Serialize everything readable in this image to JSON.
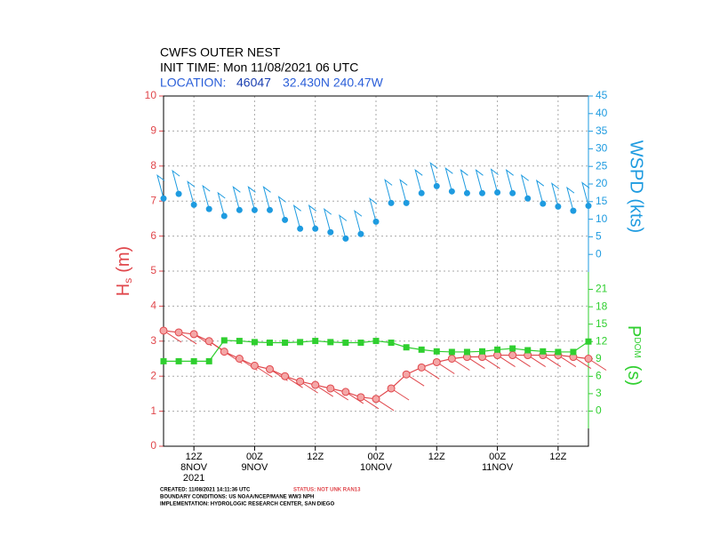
{
  "chart_data": {
    "type": "line",
    "title": "CWFS OUTER NEST",
    "subtitle": "INIT TIME: Mon 11/08/2021 06 UTC",
    "location": {
      "label": "LOCATION:",
      "station": "46047",
      "coords": "32.430N 240.47W"
    },
    "ylabel": {
      "main": "H",
      "sub": "s",
      "unit": "(m)"
    },
    "y2label": "WSPD (kts)",
    "y3label": {
      "main": "P",
      "sub": "DOM",
      "unit": "(s)"
    },
    "xlim": [
      0,
      84
    ],
    "xticks": [
      {
        "value": 6,
        "label": "12Z"
      },
      {
        "value": 18,
        "label": "00Z"
      },
      {
        "value": 30,
        "label": "12Z"
      },
      {
        "value": 42,
        "label": "00Z"
      },
      {
        "value": 54,
        "label": "12Z"
      },
      {
        "value": 66,
        "label": "00Z"
      },
      {
        "value": 78,
        "label": "12Z"
      }
    ],
    "date_labels": [
      {
        "value": 6,
        "label": "8NOV"
      },
      {
        "value": 18,
        "label": "9NOV"
      },
      {
        "value": 42,
        "label": "10NOV"
      },
      {
        "value": 66,
        "label": "11NOV"
      }
    ],
    "year_label": {
      "value": 6,
      "label": "2021"
    },
    "ylim": [
      0,
      10
    ],
    "yticks": [
      0,
      1,
      2,
      3,
      4,
      5,
      6,
      7,
      8,
      9,
      10
    ],
    "y2lim": [
      -5,
      45
    ],
    "y2ticks": [
      0,
      5,
      10,
      15,
      20,
      25,
      30,
      35,
      40,
      45
    ],
    "y3lim": [
      -3,
      24
    ],
    "y3ticks": [
      0,
      3,
      6,
      9,
      12,
      15,
      18,
      21
    ],
    "grid": true,
    "x": [
      0,
      3,
      6,
      9,
      12,
      15,
      18,
      21,
      24,
      27,
      30,
      33,
      36,
      39,
      42,
      45,
      48,
      51,
      54,
      57,
      60,
      63,
      66,
      69,
      72,
      75,
      78,
      81,
      84
    ],
    "series": [
      {
        "color": "#e0474c",
        "axis": "y",
        "values": [
          3.3,
          3.25,
          3.2,
          3.0,
          2.7,
          2.5,
          2.3,
          2.2,
          2.0,
          1.85,
          1.75,
          1.65,
          1.55,
          1.4,
          1.35,
          1.65,
          2.05,
          2.25,
          2.4,
          2.5,
          2.55,
          2.55,
          2.6,
          2.6,
          2.6,
          2.6,
          2.6,
          2.55,
          2.5
        ]
      },
      {
        "color": "#1e9be0",
        "axis": "y2",
        "values": [
          15.9,
          17.2,
          14.1,
          12.9,
          10.9,
          12.6,
          12.6,
          12.6,
          9.8,
          7.3,
          7.3,
          6.3,
          4.5,
          5.8,
          9.3,
          14.6,
          14.6,
          17.4,
          19.4,
          17.9,
          17.4,
          17.4,
          17.6,
          17.4,
          15.9,
          14.4,
          13.6,
          12.4,
          13.8
        ]
      },
      {
        "color": "#2fcf2f",
        "axis": "y3",
        "values": [
          8.6,
          8.6,
          8.6,
          8.6,
          12.2,
          12.1,
          11.9,
          11.8,
          11.8,
          11.9,
          12.1,
          11.9,
          11.8,
          11.8,
          12.1,
          11.8,
          11.0,
          10.6,
          10.3,
          10.2,
          10.2,
          10.3,
          10.6,
          10.8,
          10.5,
          10.3,
          10.2,
          10.2,
          12.0
        ]
      }
    ],
    "footer": {
      "created": "CREATED: 11/08/2021 14:11:36 UTC",
      "status": "STATUS: NOT UNK RAN13",
      "boundary": "BOUNDARY CONDITIONS: US NOAA/NCEP/MANE WW3 NPH",
      "implementation": "IMPLEMENTATION: HYDROLOGIC RESEARCH CENTER, SAN DIEGO"
    }
  }
}
